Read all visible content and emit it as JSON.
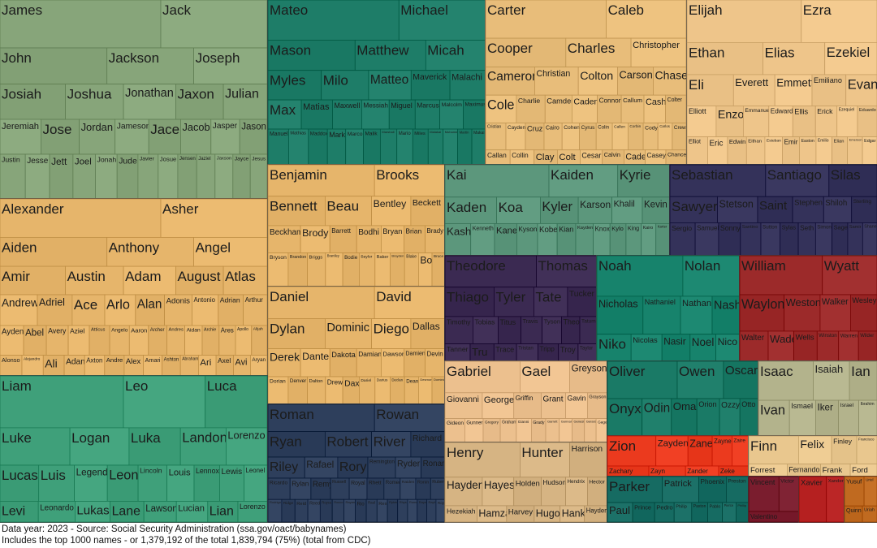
{
  "chart_data": {
    "type": "treemap",
    "title": "",
    "groups": [
      {
        "color": "#87a57a",
        "names": [
          "James",
          "Jack",
          "John",
          "Jackson",
          "Joseph",
          "Josiah",
          "Joshua",
          "Jonathan",
          "Jaxon",
          "Julian",
          "Jeremiah",
          "Jose",
          "Jordan",
          "Jameson",
          "Jace",
          "Jacob",
          "Jasper",
          "Jason",
          "Justin",
          "Jesse",
          "Jett",
          "Joel",
          "Jonah",
          "Jude",
          "Javier",
          "Josue",
          "Jensen",
          "Jaziel",
          "Jaxson",
          "Jayce",
          "Jesus",
          "Jorge",
          "Juan",
          "Judah",
          "Jax"
        ]
      },
      {
        "color": "#1e7d68",
        "names": [
          "Mateo",
          "Michael",
          "Mason",
          "Matthew",
          "Micah",
          "Myles",
          "Milo",
          "Matteo",
          "Maverick",
          "Malachi",
          "Max",
          "Matias",
          "Maxwell",
          "Messiah",
          "Miguel",
          "Marcus",
          "Malcolm",
          "Maximus",
          "Manuel",
          "Mathias",
          "Maddox",
          "Mark",
          "Marco",
          "Malik",
          "Marshall",
          "Mario",
          "Miles",
          "Malakai",
          "Muhammad",
          "Martin",
          "Makai",
          "Milan",
          "Maximiliano",
          "Major"
        ]
      },
      {
        "color": "#e8bd7a",
        "names": [
          "Carter",
          "Caleb",
          "Cooper",
          "Charles",
          "Christopher",
          "Cameron",
          "Christian",
          "Colton",
          "Carson",
          "Chase",
          "Cole",
          "Charlie",
          "Camden",
          "Caden",
          "Connor",
          "Callum",
          "Cash",
          "Colter",
          "Cristian",
          "Cayden",
          "Cruz",
          "Cairo",
          "Cohen",
          "Cyrus",
          "Colin",
          "Callen",
          "Corbin",
          "Cody",
          "Carlos",
          "Crew",
          "Callan",
          "Collin",
          "Clay",
          "Colt",
          "Cesar",
          "Calvin",
          "Cade",
          "Casey",
          "Chance"
        ]
      },
      {
        "color": "#eec58a",
        "names": [
          "Elijah",
          "Ezra",
          "Ethan",
          "Elias",
          "Ezekiel",
          "Eli",
          "Everett",
          "Emmett",
          "Emiliano",
          "Evan",
          "Elliott",
          "Enzo",
          "Emmanuel",
          "Edward",
          "Ellis",
          "Erick",
          "Ezequiel",
          "Eduardo",
          "Elliot",
          "Eric",
          "Edwin",
          "Eithan",
          "Esteban",
          "Emir",
          "Easton",
          "Emilio",
          "Elian",
          "Emerson",
          "Edgar"
        ]
      },
      {
        "color": "#e6b56b",
        "names": [
          "Alexander",
          "Asher",
          "Aiden",
          "Anthony",
          "Angel",
          "Amir",
          "Austin",
          "Adam",
          "August",
          "Atlas",
          "Andrew",
          "Adriel",
          "Ace",
          "Arlo",
          "Alan",
          "Adonis",
          "Antonio",
          "Adrian",
          "Arthur",
          "Ayden",
          "Abel",
          "Avery",
          "Aziel",
          "Atticus",
          "Angelo",
          "Aaron",
          "Archer",
          "Andres",
          "Aidan",
          "Archie",
          "Ares",
          "Apollo",
          "Alijah",
          "Alonso",
          "Alejandro",
          "Ali",
          "Adan",
          "Axton",
          "Andre",
          "Alex",
          "Amari",
          "Ashton",
          "Abraham",
          "Ari",
          "Axel",
          "Avi",
          "Aryan"
        ]
      },
      {
        "color": "#e6b56b",
        "names": [
          "Benjamin",
          "Brooks",
          "Bennett",
          "Beau",
          "Bentley",
          "Beckett",
          "Beckham",
          "Brody",
          "Barrett",
          "Bodhi",
          "Bryan",
          "Brian",
          "Brady",
          "Bryson",
          "Brandon",
          "Briggs",
          "Brantley",
          "Bodie",
          "Baylor",
          "Baker",
          "Brayden",
          "Blake",
          "Bo",
          "Bruce",
          "Bowen",
          "Braxton",
          "Bryce",
          "Bradley",
          "Boone"
        ]
      },
      {
        "color": "#e6b56b",
        "names": [
          "Daniel",
          "David",
          "Dylan",
          "Dominic",
          "Diego",
          "Dallas",
          "Derek",
          "Dante",
          "Dakota",
          "Damian",
          "Dawson",
          "Damien",
          "Devin",
          "Dorian",
          "Denver",
          "Dalton",
          "Drew",
          "Dax",
          "Dariel",
          "Darius",
          "Declan",
          "Dean",
          "Desmond",
          "Dominick",
          "Dustin"
        ]
      },
      {
        "color": "#5c977c",
        "names": [
          "Kai",
          "Kaiden",
          "Kyrie",
          "Kaden",
          "Koa",
          "Kyler",
          "Karson",
          "Khalil",
          "Kevin",
          "Kash",
          "Kenneth",
          "Kane",
          "Kyson",
          "Kobe",
          "Kian",
          "Kayden",
          "Knox",
          "Kylo",
          "King",
          "Kairo",
          "Karter",
          "Kaleb",
          "Kingston",
          "Kayson",
          "Kade"
        ]
      },
      {
        "color": "#34325a",
        "names": [
          "Sebastian",
          "Santiago",
          "Silas",
          "Sawyer",
          "Stetson",
          "Saint",
          "Stephen",
          "Shiloh",
          "Sterling",
          "Sergio",
          "Samuel",
          "Sonny",
          "Santino",
          "Sutton",
          "Sylas",
          "Seth",
          "Simon",
          "Sage",
          "Samir",
          "Shane",
          "Sean",
          "Steven",
          "Scott",
          "Salem",
          "Solomon",
          "Sullivan"
        ]
      },
      {
        "color": "#3b2a52",
        "names": [
          "Theodore",
          "Thomas",
          "Thiago",
          "Tyler",
          "Tate",
          "Tucker",
          "Timothy",
          "Tobias",
          "Titus",
          "Travis",
          "Tyson",
          "Theo",
          "Tatum",
          "Tanner",
          "Tru",
          "Trace",
          "Tristan",
          "Tripp",
          "Troy",
          "Taylor"
        ]
      },
      {
        "color": "#17836c",
        "names": [
          "Noah",
          "Nolan",
          "Nicholas",
          "Nathaniel",
          "Nathan",
          "Nash",
          "Niko",
          "Nicolas",
          "Nasir",
          "Noel",
          "Nico"
        ]
      },
      {
        "color": "#9c2a2a",
        "names": [
          "William",
          "Wyatt",
          "Waylon",
          "Weston",
          "Walker",
          "Wesley",
          "Walter",
          "Wade",
          "Wells",
          "Winston",
          "Warren",
          "Wilder"
        ]
      },
      {
        "color": "#3fa07a",
        "names": [
          "Liam",
          "Leo",
          "Luca",
          "Luke",
          "Logan",
          "Luka",
          "Landon",
          "Lorenzo",
          "Lucas",
          "Luis",
          "Legend",
          "Leon",
          "Lincoln",
          "Louis",
          "Lennox",
          "Lewis",
          "Leonel",
          "Levi",
          "Leonardo",
          "Lukas",
          "Lane",
          "Lawson",
          "Lucian",
          "Lian",
          "Lorenzo"
        ]
      },
      {
        "color": "#2e3f5c",
        "names": [
          "Roman",
          "Rowan",
          "Ryan",
          "Robert",
          "River",
          "Richard",
          "Riley",
          "Rafael",
          "Rory",
          "Remington",
          "Ryder",
          "Ronan",
          "Ricardo",
          "Rylan",
          "Remy",
          "Russell",
          "Royal",
          "Rhett",
          "Romeo",
          "Raiden",
          "Ronin",
          "Ruben",
          "Rodrigo",
          "Ridge",
          "Reid",
          "Reed",
          "Royce",
          "Rocco",
          "Rayan",
          "Rio",
          "Raul",
          "Rex",
          "Ryker",
          "Rhys",
          "Rome",
          "Raymond",
          "Raphael",
          "Roy",
          "Ray"
        ]
      },
      {
        "color": "#ecc08e",
        "names": [
          "Gabriel",
          "Gael",
          "Greyson",
          "Giovanni",
          "George",
          "Griffin",
          "Grant",
          "Gavin",
          "Grayson",
          "Gideon",
          "Gunner",
          "Gregory",
          "Graham",
          "Gianni",
          "Grady",
          "Garrett",
          "Gunnar",
          "Genesis",
          "Gerardo",
          "Gage"
        ]
      },
      {
        "color": "#d6b483",
        "names": [
          "Henry",
          "Hunter",
          "Harrison",
          "Hayden",
          "Hayes",
          "Holden",
          "Hudson",
          "Hendrix",
          "Hector",
          "Hezekiah",
          "Hamza",
          "Harvey",
          "Hugo",
          "Hank",
          "Hayden"
        ]
      },
      {
        "color": "#1a7a66",
        "names": [
          "Oliver",
          "Owen",
          "Oscar",
          "Onyx",
          "Odin",
          "Omar",
          "Orion",
          "Ozzy",
          "Otto",
          "Oakley",
          "Oliver"
        ]
      },
      {
        "color": "#b3b38c",
        "names": [
          "Isaac",
          "Isaiah",
          "Ian",
          "Ivan",
          "Ismael",
          "Iker",
          "Israel",
          "Ibrahim",
          "Izaiah",
          "Isaias"
        ]
      },
      {
        "color": "#eb3a1e",
        "names": [
          "Zion",
          "Zayden",
          "Zane",
          "Zayne",
          "Zaire",
          "Zachary",
          "Zayn",
          "Zander",
          "Zeke"
        ]
      },
      {
        "color": "#e9c78e",
        "names": [
          "Finn",
          "Felix",
          "Finley",
          "Francisco",
          "Forrest",
          "Fernando",
          "Frank",
          "Ford"
        ]
      },
      {
        "color": "#166b62",
        "names": [
          "Parker",
          "Patrick",
          "Phoenix",
          "Preston",
          "Paul",
          "Prince",
          "Pedro",
          "Philip",
          "Paxton",
          "Pablo",
          "Pierce",
          "Phillip"
        ]
      },
      {
        "color": "#7a1d2e",
        "names": [
          "Vincent",
          "Victor",
          "Valentino"
        ]
      },
      {
        "color": "#b52020",
        "names": [
          "Xavier",
          "Xander"
        ]
      },
      {
        "color": "#c06a20",
        "names": [
          "Yusuf",
          "Uriel",
          "Quinn",
          "Uriah"
        ]
      }
    ]
  },
  "footer": {
    "line1": "Data year: 2023 - Source: Social Security Administration (ssa.gov/oact/babynames)",
    "line2": "Includes the top 1000 names - or 1,379,192 of the total 1,839,794 (75%) (total from CDC)"
  }
}
